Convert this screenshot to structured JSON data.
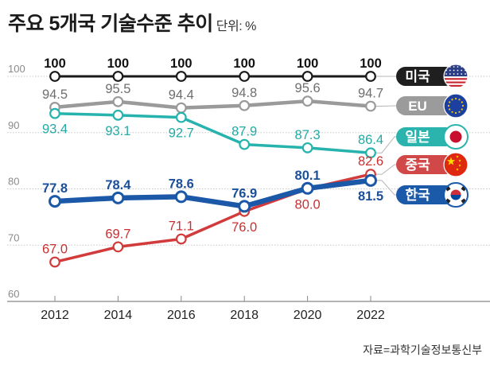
{
  "header": {
    "title": "주요 5개국 기술수준 추이",
    "unit": "단위: %"
  },
  "source": "자료=과학기술정보통신부",
  "chart_data": {
    "type": "line",
    "title": "주요 5개국 기술수준 추이",
    "unit": "%",
    "xlabel": "",
    "ylabel": "",
    "x": [
      2012,
      2014,
      2016,
      2018,
      2020,
      2022
    ],
    "x_tick_labels": [
      "2012",
      "2014",
      "2016",
      "2018",
      "2020",
      "2022"
    ],
    "ylim": [
      60,
      100
    ],
    "y_ticks": [
      60,
      70,
      80,
      90,
      100
    ],
    "y_tick_labels": [
      "60",
      "70",
      "80",
      "90",
      "100"
    ],
    "grid": true,
    "legend": "right",
    "series": [
      {
        "name": "미국",
        "key": "us",
        "color": "#1a1a1a",
        "pill_color": "#1f1f1f",
        "label_color": "#111111",
        "flag": "us-flag-icon",
        "values": [
          100,
          100,
          100,
          100,
          100,
          100
        ],
        "labels": [
          "100",
          "100",
          "100",
          "100",
          "100",
          "100"
        ],
        "label_placement": [
          "above",
          "above",
          "above",
          "above",
          "above",
          "above"
        ]
      },
      {
        "name": "EU",
        "key": "eu",
        "color": "#9a9a9a",
        "pill_color": "#9b9b9b",
        "label_color": "#6e6e6e",
        "flag": "eu-flag-icon",
        "values": [
          94.5,
          95.5,
          94.4,
          94.8,
          95.6,
          94.7
        ],
        "labels": [
          "94.5",
          "95.5",
          "94.4",
          "94.8",
          "95.6",
          "94.7"
        ],
        "label_placement": [
          "above",
          "above",
          "above",
          "above",
          "above",
          "above"
        ]
      },
      {
        "name": "일본",
        "key": "jp",
        "color": "#26b3ad",
        "pill_color": "#2bb4ae",
        "label_color": "#22aaa4",
        "flag": "japan-flag-icon",
        "values": [
          93.4,
          93.1,
          92.7,
          87.9,
          87.3,
          86.4
        ],
        "labels": [
          "93.4",
          "93.1",
          "92.7",
          "87.9",
          "87.3",
          "86.4"
        ],
        "label_placement": [
          "below",
          "below",
          "below",
          "above",
          "above",
          "above"
        ]
      },
      {
        "name": "중국",
        "key": "cn",
        "color": "#d23b3b",
        "pill_color": "#d14848",
        "label_color": "#c93030",
        "flag": "china-flag-icon",
        "values": [
          67.0,
          69.7,
          71.1,
          76.0,
          80.0,
          82.6
        ],
        "labels": [
          "67.0",
          "69.7",
          "71.1",
          "76.0",
          "80.0",
          "82.6"
        ],
        "label_placement": [
          "above",
          "above",
          "above",
          "below",
          "below",
          "above"
        ]
      },
      {
        "name": "한국",
        "key": "kr",
        "color": "#1b58a8",
        "pill_color": "#1b5aa9",
        "label_color": "#1b4f9a",
        "flag": "korea-flag-icon",
        "values": [
          77.8,
          78.4,
          78.6,
          76.9,
          80.1,
          81.5
        ],
        "labels": [
          "77.8",
          "78.4",
          "78.6",
          "76.9",
          "80.1",
          "81.5"
        ],
        "label_placement": [
          "above",
          "above",
          "above",
          "above",
          "above",
          "below"
        ]
      }
    ]
  }
}
